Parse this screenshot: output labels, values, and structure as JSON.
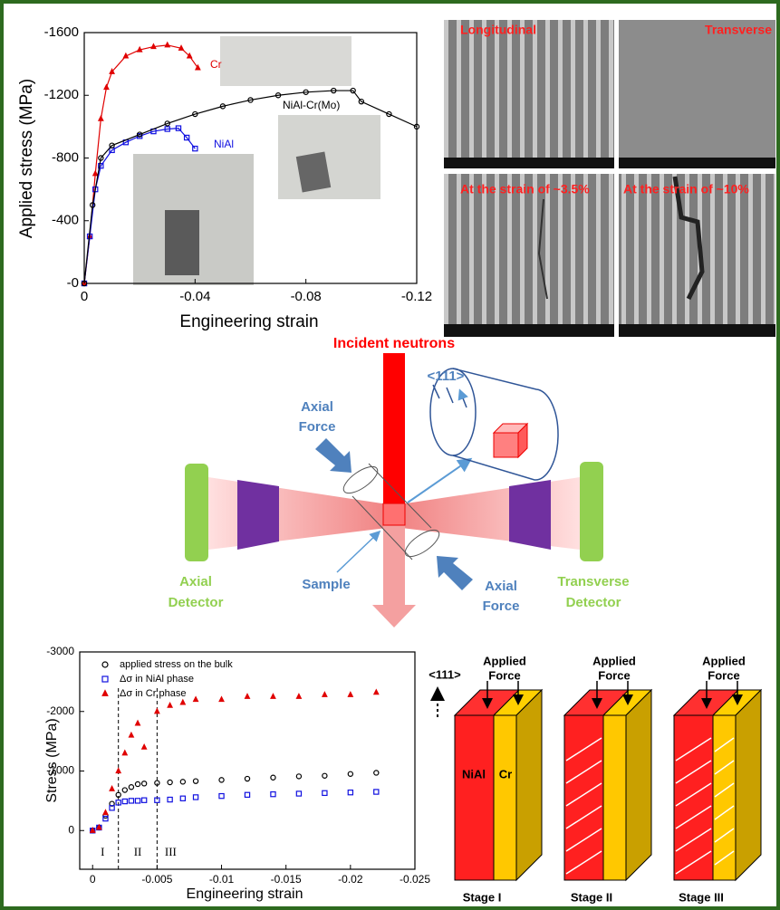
{
  "chart_data": [
    {
      "type": "line",
      "y_label": "Applied stress (MPa)",
      "x_label": "Engineering strain",
      "xlim": [
        0,
        -0.12
      ],
      "ylim": [
        0,
        -1600
      ],
      "xticks": [
        0,
        -0.04,
        -0.08,
        -0.12
      ],
      "yticks": [
        {
          "value": 0,
          "label": "-0"
        },
        -400,
        -800,
        -1200,
        -1600
      ],
      "series": [
        {
          "name": "Cr",
          "color": "#e00000",
          "marker": "triangle",
          "x": [
            0,
            -0.002,
            -0.004,
            -0.006,
            -0.008,
            -0.01,
            -0.015,
            -0.02,
            -0.025,
            -0.03,
            -0.035,
            -0.038,
            -0.041
          ],
          "values": [
            0,
            -300,
            -700,
            -1050,
            -1250,
            -1350,
            -1450,
            -1490,
            -1510,
            -1520,
            -1500,
            -1450,
            -1375
          ]
        },
        {
          "name": "NiAl",
          "color": "#1010e0",
          "marker": "square",
          "x": [
            0,
            -0.002,
            -0.004,
            -0.006,
            -0.01,
            -0.015,
            -0.02,
            -0.025,
            -0.03,
            -0.034,
            -0.037,
            -0.04
          ],
          "values": [
            0,
            -300,
            -600,
            -750,
            -850,
            -900,
            -940,
            -970,
            -985,
            -990,
            -930,
            -860
          ]
        },
        {
          "name": "NiAl-Cr(Mo)",
          "color": "#000000",
          "marker": "circle",
          "x": [
            0,
            -0.003,
            -0.006,
            -0.01,
            -0.02,
            -0.03,
            -0.04,
            -0.05,
            -0.06,
            -0.07,
            -0.08,
            -0.09,
            -0.097,
            -0.1,
            -0.11,
            -0.12
          ],
          "values": [
            0,
            -500,
            -800,
            -880,
            -950,
            -1020,
            -1080,
            -1130,
            -1170,
            -1200,
            -1220,
            -1230,
            -1230,
            -1160,
            -1080,
            -1000
          ]
        }
      ]
    },
    {
      "type": "scatter",
      "y_label": "Stress (MPa)",
      "x_label": "Engineering strain",
      "xlim": [
        0.001,
        -0.025
      ],
      "ylim": [
        650,
        -3000
      ],
      "xticks": [
        0,
        -0.005,
        -0.01,
        -0.015,
        -0.02,
        -0.025
      ],
      "yticks": [
        -3000,
        -2000,
        -1000,
        0
      ],
      "stage_lines": [
        -0.002,
        -0.005
      ],
      "stage_labels": [
        "I",
        "II",
        "III"
      ],
      "legend": "upper left",
      "series": [
        {
          "name": "applied stress on the bulk",
          "color": "#000000",
          "marker": "circle",
          "x": [
            0,
            -0.0005,
            -0.001,
            -0.0015,
            -0.002,
            -0.0025,
            -0.003,
            -0.0035,
            -0.004,
            -0.005,
            -0.006,
            -0.007,
            -0.008,
            -0.01,
            -0.012,
            -0.014,
            -0.016,
            -0.018,
            -0.02,
            -0.022
          ],
          "values": [
            0,
            -50,
            -250,
            -450,
            -600,
            -680,
            -730,
            -780,
            -790,
            -800,
            -810,
            -820,
            -830,
            -850,
            -870,
            -890,
            -910,
            -920,
            -950,
            -970
          ]
        },
        {
          "name": "Δσ in NiAl phase",
          "color": "#1010e0",
          "marker": "square",
          "x": [
            0,
            -0.0005,
            -0.001,
            -0.0015,
            -0.002,
            -0.0025,
            -0.003,
            -0.0035,
            -0.004,
            -0.005,
            -0.006,
            -0.007,
            -0.008,
            -0.01,
            -0.012,
            -0.014,
            -0.016,
            -0.018,
            -0.02,
            -0.022
          ],
          "values": [
            0,
            -50,
            -200,
            -380,
            -470,
            -490,
            -500,
            -500,
            -510,
            -510,
            -520,
            -540,
            -560,
            -580,
            -600,
            -610,
            -620,
            -630,
            -640,
            -650
          ]
        },
        {
          "name": "Δσ in Cr phase",
          "color": "#e00000",
          "marker": "triangle",
          "x": [
            0,
            -0.0005,
            -0.001,
            -0.0015,
            -0.002,
            -0.0025,
            -0.003,
            -0.0035,
            -0.004,
            -0.005,
            -0.006,
            -0.007,
            -0.008,
            -0.01,
            -0.012,
            -0.014,
            -0.016,
            -0.018,
            -0.02,
            -0.022
          ],
          "values": [
            0,
            -50,
            -300,
            -700,
            -1000,
            -1300,
            -1600,
            -1800,
            -1400,
            -2000,
            -2100,
            -2150,
            -2200,
            -2200,
            -2250,
            -2250,
            -2250,
            -2280,
            -2280,
            -2320
          ]
        }
      ]
    }
  ],
  "micrographs": [
    "Longitudinal",
    "Transverse",
    "At the strain of ~3.5%",
    "At the strain of ~10%"
  ],
  "diagram": {
    "beam": "Incident neutrons",
    "direction": "<111>",
    "force_top": [
      "Axial",
      "Force"
    ],
    "force_bottom": [
      "Axial",
      "Force"
    ],
    "left_detector": [
      "Axial",
      "Detector"
    ],
    "sample": "Sample",
    "right_detector": [
      "Transverse",
      "Detector"
    ]
  },
  "stages": {
    "direction": "<111>",
    "phases": [
      "NiAl",
      "Cr"
    ],
    "panels": [
      {
        "force": [
          "Applied",
          "Force"
        ],
        "name": "Stage I"
      },
      {
        "force": [
          "Applied",
          "Force"
        ],
        "name": "Stage II"
      },
      {
        "force": [
          "Applied",
          "Force"
        ],
        "name": "Stage III"
      }
    ]
  }
}
